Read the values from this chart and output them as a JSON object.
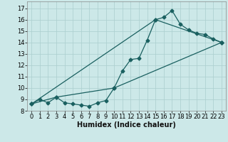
{
  "title": "",
  "xlabel": "Humidex (Indice chaleur)",
  "ylabel": "",
  "bg_color": "#cce8e8",
  "grid_color": "#aacece",
  "line_color": "#1a6060",
  "xlim": [
    -0.5,
    23.5
  ],
  "ylim": [
    8.0,
    17.6
  ],
  "xticks": [
    0,
    1,
    2,
    3,
    4,
    5,
    6,
    7,
    8,
    9,
    10,
    11,
    12,
    13,
    14,
    15,
    16,
    17,
    18,
    19,
    20,
    21,
    22,
    23
  ],
  "yticks": [
    8,
    9,
    10,
    11,
    12,
    13,
    14,
    15,
    16,
    17
  ],
  "series1_x": [
    0,
    1,
    2,
    3,
    4,
    5,
    6,
    7,
    8,
    9,
    10,
    11,
    12,
    13,
    14,
    15,
    16,
    17,
    18,
    19,
    20,
    21,
    22,
    23
  ],
  "series1_y": [
    8.6,
    9.0,
    8.7,
    9.2,
    8.7,
    8.6,
    8.5,
    8.4,
    8.7,
    8.9,
    10.0,
    11.5,
    12.5,
    12.6,
    14.2,
    16.0,
    16.2,
    16.8,
    15.6,
    15.1,
    14.8,
    14.7,
    14.3,
    14.0
  ],
  "series2_x": [
    0,
    3,
    10,
    23
  ],
  "series2_y": [
    8.6,
    9.2,
    10.0,
    14.0
  ],
  "series3_x": [
    0,
    15,
    23
  ],
  "series3_y": [
    8.6,
    16.0,
    14.0
  ],
  "marker": "D",
  "markersize": 2.5,
  "linewidth": 0.9,
  "xlabel_fontsize": 7,
  "tick_fontsize": 6
}
